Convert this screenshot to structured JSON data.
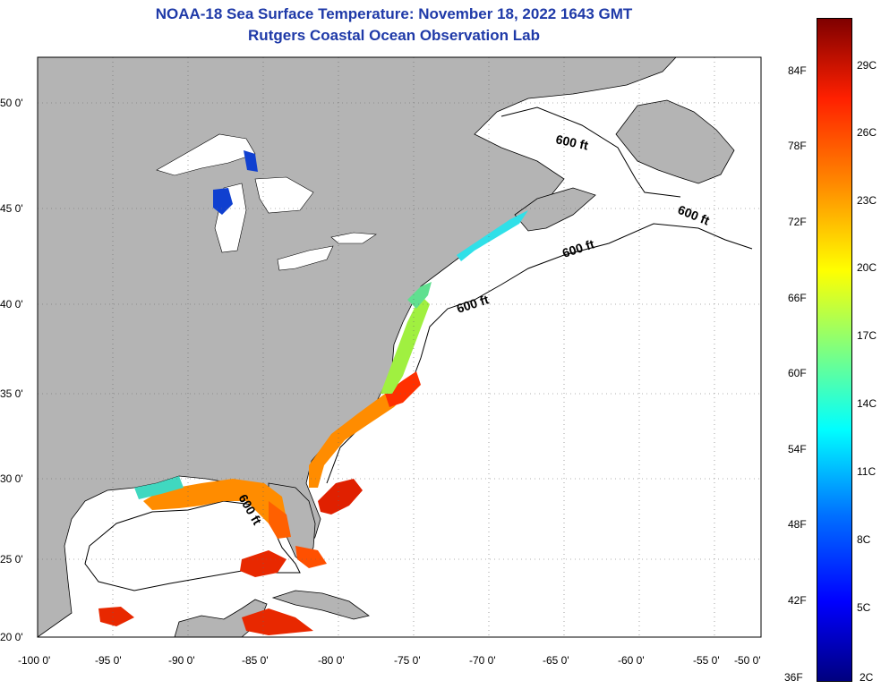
{
  "title_line1": "NOAA-18 Sea Surface Temperature:  November 18, 2022 1643 GMT",
  "title_line2": "Rutgers Coastal Ocean Observation Lab",
  "lat_labels": [
    "50 0'",
    "45 0'",
    "40 0'",
    "35 0'",
    "30 0'",
    "25 0'",
    "20 0'"
  ],
  "lon_labels": [
    "-100 0'",
    "-95 0'",
    "-90 0'",
    "-85 0'",
    "-80 0'",
    "-75 0'",
    "-70 0'",
    "-65 0'",
    "-60 0'",
    "-55 0'",
    "-50 0'"
  ],
  "contour_label": "600 ft",
  "colorbar": {
    "fahrenheit": [
      "84F",
      "78F",
      "72F",
      "66F",
      "60F",
      "54F",
      "48F",
      "42F",
      "36F"
    ],
    "celsius": [
      "29C",
      "26C",
      "23C",
      "20C",
      "17C",
      "14C",
      "11C",
      "8C",
      "5C",
      "2C"
    ]
  },
  "colors": {
    "land": "#b4b4b4",
    "title": "#1f3aa8",
    "ocean": "#ffffff"
  }
}
